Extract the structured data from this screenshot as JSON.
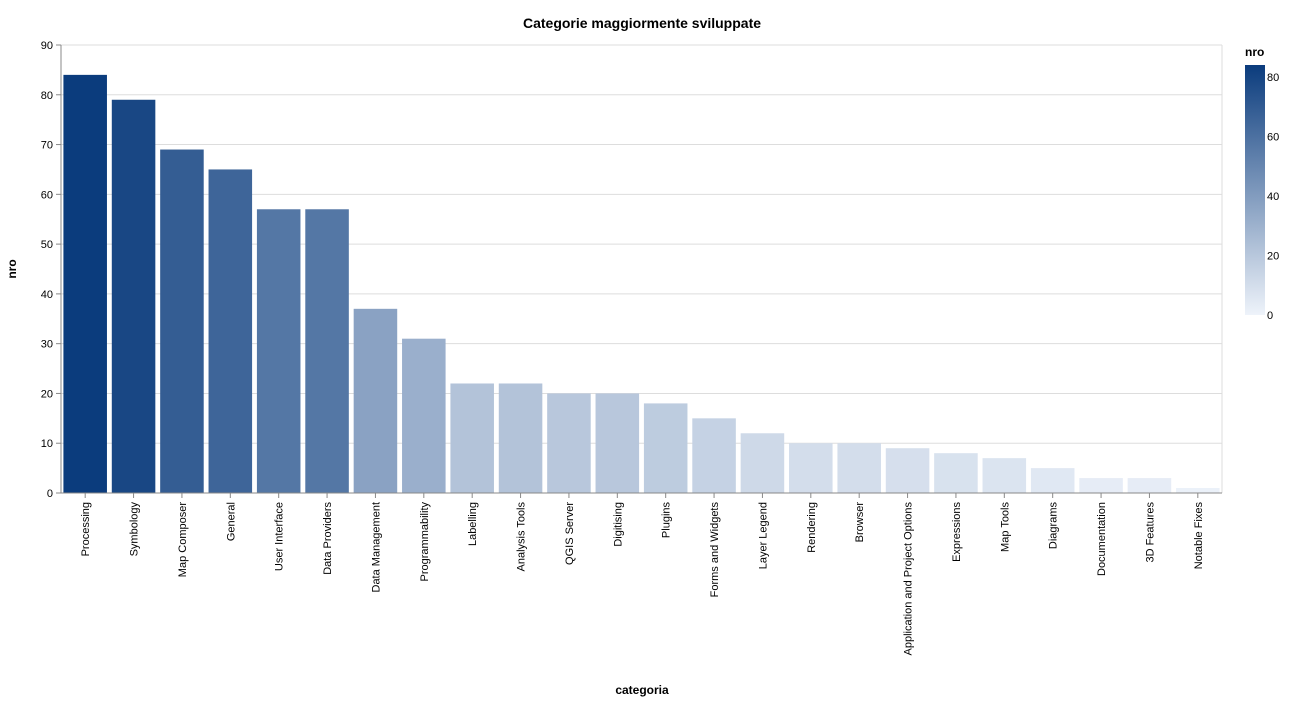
{
  "chart_data": {
    "type": "bar",
    "title": "Categorie maggiormente sviluppate",
    "xlabel": "categoria",
    "ylabel": "nro",
    "ylim": [
      0,
      90
    ],
    "yticks": [
      0,
      10,
      20,
      30,
      40,
      50,
      60,
      70,
      80,
      90
    ],
    "grid": true,
    "categories": [
      "Processing",
      "Symbology",
      "Map Composer",
      "General",
      "User Interface",
      "Data Providers",
      "Data Management",
      "Programmability",
      "Labelling",
      "Analysis Tools",
      "QGIS Server",
      "Digitising",
      "Plugins",
      "Forms and Widgets",
      "Layer Legend",
      "Rendering",
      "Browser",
      "Application and Project Options",
      "Expressions",
      "Map Tools",
      "Diagrams",
      "Documentation",
      "3D Features",
      "Notable Fixes"
    ],
    "values": [
      84,
      79,
      69,
      65,
      57,
      57,
      37,
      31,
      22,
      22,
      20,
      20,
      18,
      15,
      12,
      10,
      10,
      9,
      8,
      7,
      5,
      3,
      3,
      1
    ],
    "legend": {
      "title": "nro",
      "placement": "right",
      "domain": [
        0,
        84
      ],
      "ticks": [
        0,
        20,
        40,
        60,
        80
      ],
      "color_low": "#eef3fa",
      "color_high": "#0b3c7d"
    }
  }
}
